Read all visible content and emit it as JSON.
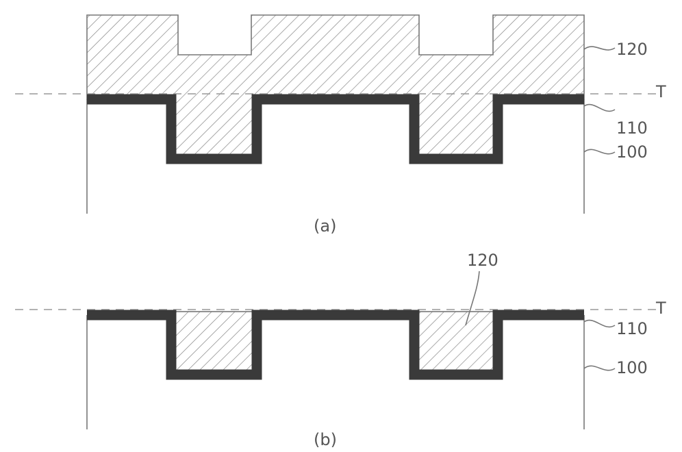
{
  "panels": [
    {
      "id": "a",
      "caption": "(a)",
      "labels": {
        "fill_layer": "120",
        "top_ref": "T",
        "liner": "110",
        "substrate": "100"
      }
    },
    {
      "id": "b",
      "caption": "(b)",
      "labels": {
        "fill_layer": "120",
        "top_ref": "T",
        "liner": "110",
        "substrate": "100"
      }
    }
  ],
  "colors": {
    "liner": "#3a3a3a",
    "outline": "#777777",
    "hatch": "#888888",
    "background": "#ffffff"
  }
}
